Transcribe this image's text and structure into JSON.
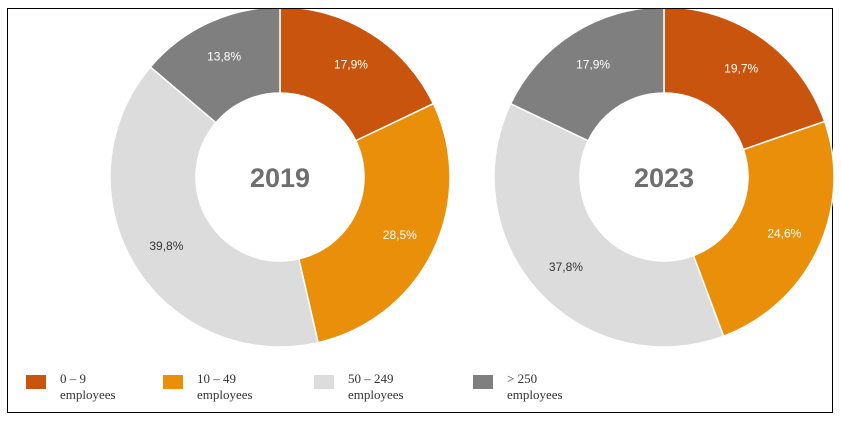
{
  "chart_data": [
    {
      "type": "donut",
      "center_label": "2019",
      "slices": [
        {
          "category": "0 – 9 employees",
          "value": 17.9,
          "label": "17,9%",
          "color": "#C9540E"
        },
        {
          "category": "10 – 49 employees",
          "value": 28.5,
          "label": "28,5%",
          "color": "#E98F0A"
        },
        {
          "category": "50 – 249 employees",
          "value": 39.8,
          "label": "39,8%",
          "color": "#DCDCDC"
        },
        {
          "category": "> 250 employees",
          "value": 13.8,
          "label": "13,8%",
          "color": "#7F7F7F"
        }
      ]
    },
    {
      "type": "donut",
      "center_label": "2023",
      "slices": [
        {
          "category": "0 – 9 employees",
          "value": 19.7,
          "label": "19,7%",
          "color": "#C9540E"
        },
        {
          "category": "10 – 49 employees",
          "value": 24.6,
          "label": "24,6%",
          "color": "#E98F0A"
        },
        {
          "category": "50 – 249 employees",
          "value": 37.8,
          "label": "37,8%",
          "color": "#DCDCDC"
        },
        {
          "category": "> 250 employees",
          "value": 17.9,
          "label": "17,9%",
          "color": "#7F7F7F"
        }
      ]
    }
  ],
  "legend": [
    {
      "label": "0 – 9\nemployees",
      "color": "#C9540E"
    },
    {
      "label": "10 – 49\nemployees",
      "color": "#E98F0A"
    },
    {
      "label": "50 – 249\nemployees",
      "color": "#DCDCDC"
    },
    {
      "label": "> 250\nemployees",
      "color": "#7F7F7F"
    }
  ]
}
